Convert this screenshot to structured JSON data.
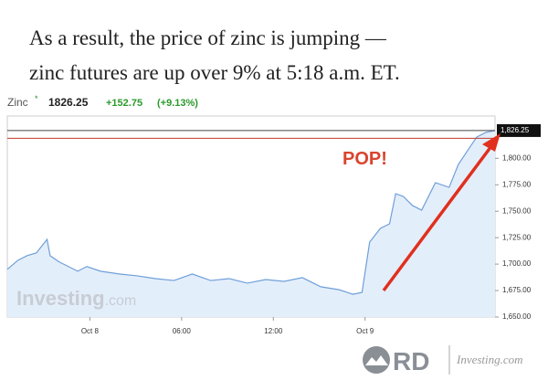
{
  "caption": [
    "As a result, the price of zinc is jumping —",
    "zinc futures are up over 9% at 5:18 a.m. ET."
  ],
  "chart_data": {
    "type": "area",
    "header": {
      "name": "Zinc",
      "price": "1826.25",
      "change": "+152.75",
      "change_pct": "(+9.13%)"
    },
    "annotation": "POP!",
    "watermark": {
      "brand": "Investing",
      "suffix": ".com"
    },
    "color": "#6f9fd8",
    "fill": "#e3eefb",
    "x": [
      -5.4,
      -4.7,
      -4.1,
      -3.5,
      -2.8,
      -2.6,
      -2.0,
      -1.4,
      -0.8,
      -0.2,
      0.7,
      1.9,
      3.1,
      4.3,
      5.5,
      6.7,
      7.9,
      9.1,
      10.3,
      11.5,
      12.7,
      13.9,
      15.1,
      16.3,
      17.2,
      17.8,
      18.3,
      19.0,
      19.6,
      20.0,
      20.5,
      21.1,
      21.7,
      22.6,
      23.5,
      24.1,
      24.7,
      25.3,
      25.9,
      26.5
    ],
    "values": [
      1695.1,
      1703.7,
      1708,
      1710.6,
      1723.4,
      1708,
      1702,
      1697.7,
      1693.3,
      1697.7,
      1693.3,
      1690.7,
      1688.9,
      1686.3,
      1684.5,
      1690.7,
      1684.5,
      1686.3,
      1682,
      1685.4,
      1683.7,
      1687.2,
      1678.6,
      1675.8,
      1671.5,
      1673.2,
      1720.8,
      1733.8,
      1738.1,
      1766.6,
      1764,
      1755.4,
      1751,
      1777,
      1772.6,
      1794.2,
      1807.2,
      1820.1,
      1824.5,
      1826.25
    ],
    "xlim": [
      -5.4,
      26.5
    ],
    "xticks": [
      {
        "value": 0,
        "label": "Oct 8"
      },
      {
        "value": 6,
        "label": "06:00"
      },
      {
        "value": 12,
        "label": "12:00"
      },
      {
        "value": 18,
        "label": "Oct 9"
      }
    ],
    "ylim": [
      1650,
      1840
    ],
    "yticks": [
      {
        "value": 1650,
        "label": "1,650.00"
      },
      {
        "value": 1675,
        "label": "1,675.00"
      },
      {
        "value": 1700,
        "label": "1,700.00"
      },
      {
        "value": 1725,
        "label": "1,725.00"
      },
      {
        "value": 1750,
        "label": "1,750.00"
      },
      {
        "value": 1775,
        "label": "1,775.00"
      },
      {
        "value": 1800,
        "label": "1,800.00"
      }
    ],
    "last_value": {
      "value": 1826.25,
      "label": "1,826.25"
    },
    "reference_line": {
      "value": 1819,
      "color": "#c0392b"
    }
  },
  "footer": {
    "logo": "RD",
    "source": "Investing.com"
  }
}
